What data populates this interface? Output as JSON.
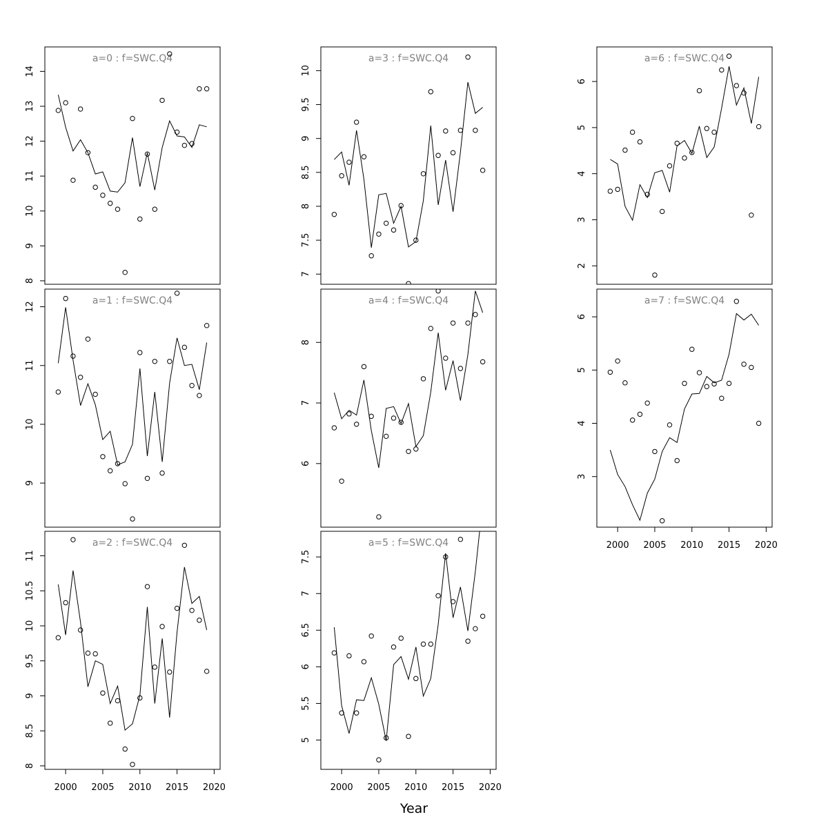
{
  "figure": {
    "xlabel": "Year",
    "line_color": "#000000",
    "title_color": "#808080"
  },
  "chart_data": [
    {
      "type": "line",
      "title": "a=0  :  f=SWC.Q4",
      "x": [
        1999,
        2000,
        2001,
        2002,
        2003,
        2004,
        2005,
        2006,
        2007,
        2008,
        2009,
        2010,
        2011,
        2012,
        2013,
        2014,
        2015,
        2016,
        2017,
        2018,
        2019
      ],
      "series": [
        {
          "kind": "points",
          "values": [
            12.88,
            13.1,
            10.88,
            12.92,
            11.67,
            10.68,
            10.45,
            10.22,
            10.05,
            8.24,
            12.65,
            9.77,
            11.63,
            10.05,
            13.17,
            14.5,
            12.26,
            11.88,
            11.93,
            13.5,
            13.5
          ]
        },
        {
          "kind": "line",
          "values": [
            13.33,
            12.4,
            11.72,
            12.04,
            11.67,
            11.06,
            11.12,
            10.57,
            10.54,
            10.81,
            12.1,
            10.7,
            11.67,
            10.6,
            11.82,
            12.58,
            12.15,
            12.12,
            11.82,
            12.47,
            12.41
          ]
        }
      ],
      "xlim": [
        1997.2,
        2020.8
      ],
      "ylim": [
        7.9,
        14.7
      ],
      "yticks": [
        8,
        9,
        10,
        11,
        12,
        13,
        14
      ],
      "xticks": [
        2000,
        2005,
        2010,
        2015,
        2020
      ],
      "show_xaxis": false
    },
    {
      "type": "line",
      "title": "a=1  :  f=SWC.Q4",
      "x": [
        1999,
        2000,
        2001,
        2002,
        2003,
        2004,
        2005,
        2006,
        2007,
        2008,
        2009,
        2010,
        2011,
        2012,
        2013,
        2014,
        2015,
        2016,
        2017,
        2018,
        2019
      ],
      "series": [
        {
          "kind": "points",
          "values": [
            10.55,
            12.14,
            11.16,
            10.8,
            11.45,
            10.51,
            9.45,
            9.21,
            9.33,
            8.99,
            8.39,
            11.22,
            9.08,
            11.07,
            9.17,
            11.07,
            12.23,
            11.31,
            10.66,
            10.49,
            11.68
          ]
        },
        {
          "kind": "line",
          "values": [
            11.04,
            11.99,
            11.09,
            10.32,
            10.69,
            10.33,
            9.74,
            9.88,
            9.31,
            9.36,
            9.66,
            10.95,
            9.46,
            10.55,
            9.36,
            10.7,
            11.47,
            11.0,
            11.02,
            10.59,
            11.39
          ]
        }
      ],
      "xlim": [
        1997.2,
        2020.8
      ],
      "ylim": [
        8.25,
        12.3
      ],
      "yticks": [
        9,
        10,
        11,
        12
      ],
      "xticks": [
        2000,
        2005,
        2010,
        2015,
        2020
      ],
      "show_xaxis": false
    },
    {
      "type": "line",
      "title": "a=2  :  f=SWC.Q4",
      "x": [
        1999,
        2000,
        2001,
        2002,
        2003,
        2004,
        2005,
        2006,
        2007,
        2008,
        2009,
        2010,
        2011,
        2012,
        2013,
        2014,
        2015,
        2016,
        2017,
        2018,
        2019
      ],
      "series": [
        {
          "kind": "points",
          "values": [
            9.83,
            10.33,
            11.23,
            9.94,
            9.61,
            9.6,
            9.04,
            8.61,
            8.93,
            8.24,
            8.02,
            8.97,
            10.56,
            9.41,
            9.99,
            9.34,
            10.25,
            11.15,
            10.22,
            10.08,
            9.35
          ]
        },
        {
          "kind": "line",
          "values": [
            10.59,
            9.87,
            10.79,
            10.05,
            9.13,
            9.5,
            9.45,
            8.89,
            9.14,
            8.51,
            8.6,
            9.01,
            10.27,
            8.89,
            9.82,
            8.69,
            9.91,
            10.84,
            10.32,
            10.42,
            9.94
          ]
        }
      ],
      "xlim": [
        1997.2,
        2020.8
      ],
      "ylim": [
        7.95,
        11.35
      ],
      "yticks": [
        8.0,
        8.5,
        9.0,
        9.5,
        10.0,
        10.5,
        11.0
      ],
      "xticks": [
        2000,
        2005,
        2010,
        2015,
        2020
      ],
      "show_xaxis": true
    },
    {
      "type": "line",
      "title": "a=3  :  f=SWC.Q4",
      "x": [
        1999,
        2000,
        2001,
        2002,
        2003,
        2004,
        2005,
        2006,
        2007,
        2008,
        2009,
        2010,
        2011,
        2012,
        2013,
        2014,
        2015,
        2016,
        2017,
        2018,
        2019
      ],
      "series": [
        {
          "kind": "points",
          "values": [
            7.88,
            8.45,
            8.65,
            9.24,
            8.73,
            7.27,
            7.59,
            7.75,
            7.65,
            8.01,
            6.86,
            7.5,
            8.48,
            9.69,
            8.75,
            9.11,
            8.79,
            9.12,
            10.2,
            9.12,
            8.53
          ]
        },
        {
          "kind": "line",
          "values": [
            8.69,
            8.8,
            8.31,
            9.12,
            8.4,
            7.39,
            8.17,
            8.19,
            7.75,
            8.0,
            7.4,
            7.48,
            8.08,
            9.19,
            8.02,
            8.68,
            7.92,
            8.8,
            9.83,
            9.37,
            9.46
          ]
        }
      ],
      "xlim": [
        1997.2,
        2020.8
      ],
      "ylim": [
        6.85,
        10.35
      ],
      "yticks": [
        7.0,
        7.5,
        8.0,
        8.5,
        9.0,
        9.5,
        10.0
      ],
      "xticks": [
        2000,
        2005,
        2010,
        2015,
        2020
      ],
      "show_xaxis": false
    },
    {
      "type": "line",
      "title": "a=4  :  f=SWC.Q4",
      "x": [
        1999,
        2000,
        2001,
        2002,
        2003,
        2004,
        2005,
        2006,
        2007,
        2008,
        2009,
        2010,
        2011,
        2012,
        2013,
        2014,
        2015,
        2016,
        2017,
        2018,
        2019
      ],
      "series": [
        {
          "kind": "points",
          "values": [
            6.59,
            5.71,
            6.82,
            6.65,
            7.6,
            6.78,
            5.12,
            6.45,
            6.75,
            6.68,
            6.2,
            6.24,
            7.4,
            8.23,
            8.85,
            7.74,
            8.32,
            7.57,
            8.32,
            8.46,
            7.68
          ]
        },
        {
          "kind": "line",
          "values": [
            7.17,
            6.74,
            6.88,
            6.8,
            7.38,
            6.54,
            5.93,
            6.91,
            6.94,
            6.66,
            6.99,
            6.28,
            6.46,
            7.18,
            8.16,
            7.21,
            7.7,
            7.04,
            7.8,
            8.85,
            8.49
          ]
        }
      ],
      "xlim": [
        1997.2,
        2020.8
      ],
      "ylim": [
        4.95,
        8.88
      ],
      "yticks": [
        6,
        7,
        8
      ],
      "xticks": [
        2000,
        2005,
        2010,
        2015,
        2020
      ],
      "show_xaxis": false
    },
    {
      "type": "line",
      "title": "a=5  :  f=SWC.Q4",
      "x": [
        1999,
        2000,
        2001,
        2002,
        2003,
        2004,
        2005,
        2006,
        2007,
        2008,
        2009,
        2010,
        2011,
        2012,
        2013,
        2014,
        2015,
        2016,
        2017,
        2018,
        2019
      ],
      "series": [
        {
          "kind": "points",
          "values": [
            6.19,
            5.37,
            6.15,
            5.37,
            6.07,
            6.42,
            4.73,
            5.03,
            6.27,
            6.39,
            5.05,
            5.84,
            6.31,
            6.31,
            6.97,
            7.5,
            6.89,
            7.74,
            6.35,
            6.52,
            6.69
          ]
        },
        {
          "kind": "line",
          "values": [
            6.54,
            5.47,
            5.09,
            5.55,
            5.54,
            5.85,
            5.49,
            4.99,
            6.03,
            6.14,
            5.83,
            6.27,
            5.6,
            5.84,
            6.58,
            7.55,
            6.67,
            7.09,
            6.49,
            7.3,
            8.25
          ]
        }
      ],
      "xlim": [
        1997.2,
        2020.8
      ],
      "ylim": [
        4.6,
        7.85
      ],
      "yticks": [
        5.0,
        5.5,
        6.0,
        6.5,
        7.0,
        7.5
      ],
      "xticks": [
        2000,
        2005,
        2010,
        2015,
        2020
      ],
      "show_xaxis": true
    },
    {
      "type": "line",
      "title": "a=6  :  f=SWC.Q4",
      "x": [
        1999,
        2000,
        2001,
        2002,
        2003,
        2004,
        2005,
        2006,
        2007,
        2008,
        2009,
        2010,
        2011,
        2012,
        2013,
        2014,
        2015,
        2016,
        2017,
        2018,
        2019
      ],
      "series": [
        {
          "kind": "points",
          "values": [
            3.62,
            3.66,
            4.51,
            4.9,
            4.69,
            3.55,
            1.8,
            3.18,
            4.17,
            4.66,
            4.34,
            4.46,
            5.8,
            4.98,
            4.9,
            6.25,
            6.55,
            5.91,
            5.75,
            3.1,
            5.02
          ]
        },
        {
          "kind": "line",
          "values": [
            4.31,
            4.21,
            3.29,
            2.99,
            3.76,
            3.48,
            4.02,
            4.07,
            3.6,
            4.6,
            4.72,
            4.44,
            5.03,
            4.35,
            4.58,
            5.42,
            6.33,
            5.49,
            5.86,
            5.09,
            6.1
          ]
        }
      ],
      "xlim": [
        1997.2,
        2020.8
      ],
      "ylim": [
        1.6,
        6.75
      ],
      "yticks": [
        2,
        3,
        4,
        5,
        6
      ],
      "xticks": [
        2000,
        2005,
        2010,
        2015,
        2020
      ],
      "show_xaxis": false
    },
    {
      "type": "line",
      "title": "a=7  :  f=SWC.Q4",
      "x": [
        1999,
        2000,
        2001,
        2002,
        2003,
        2004,
        2005,
        2006,
        2007,
        2008,
        2009,
        2010,
        2011,
        2012,
        2013,
        2014,
        2015,
        2016,
        2017,
        2018,
        2019
      ],
      "series": [
        {
          "kind": "points",
          "values": [
            4.96,
            5.17,
            4.76,
            4.06,
            4.17,
            4.38,
            3.47,
            2.17,
            3.97,
            3.3,
            4.75,
            5.39,
            4.95,
            4.69,
            4.74,
            4.47,
            4.75,
            6.29,
            5.11,
            5.05,
            4.0
          ]
        },
        {
          "kind": "line",
          "values": [
            3.5,
            3.04,
            2.81,
            2.47,
            2.18,
            2.69,
            2.95,
            3.47,
            3.73,
            3.64,
            4.27,
            4.55,
            4.56,
            4.88,
            4.76,
            4.81,
            5.3,
            6.06,
            5.94,
            6.05,
            5.84
          ]
        }
      ],
      "xlim": [
        1997.2,
        2020.8
      ],
      "ylim": [
        2.05,
        6.52
      ],
      "yticks": [
        3,
        4,
        5,
        6
      ],
      "xticks": [
        2000,
        2005,
        2010,
        2015,
        2020
      ],
      "show_xaxis": true
    }
  ]
}
